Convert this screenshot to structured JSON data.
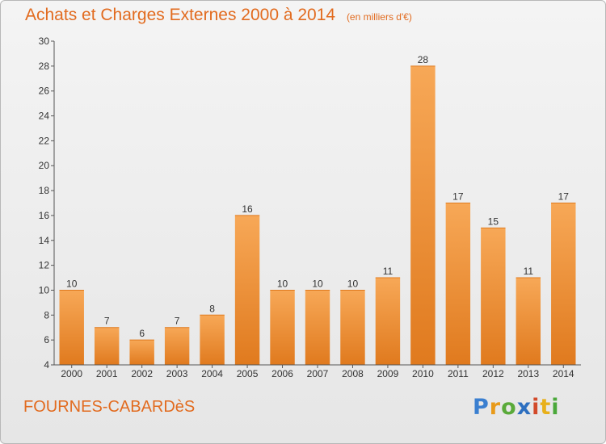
{
  "header": {
    "title": "Achats et Charges Externes 2000 à 2014",
    "unit": "(en milliers d'€)"
  },
  "footer": {
    "commune": "FOURNES-CABARDèS",
    "logo": {
      "letters": [
        "P",
        "r",
        "o",
        "x",
        "i",
        "t",
        "i"
      ],
      "colors": [
        "#3a7fd0",
        "#e89a1a",
        "#5aaa3a",
        "#2d6fc0",
        "#d24a2a",
        "#e8b01a",
        "#4aa83a"
      ]
    }
  },
  "chart_data": {
    "type": "bar",
    "title": "Achats et Charges Externes 2000 à 2014",
    "subtitle": "(en milliers d'€)",
    "xlabel": "",
    "ylabel": "",
    "categories": [
      "2000",
      "2001",
      "2002",
      "2003",
      "2004",
      "2005",
      "2006",
      "2007",
      "2008",
      "2009",
      "2010",
      "2011",
      "2012",
      "2013",
      "2014"
    ],
    "values": [
      10,
      7,
      6,
      7,
      8,
      16,
      10,
      10,
      10,
      11,
      28,
      17,
      15,
      11,
      17
    ],
    "ylim": [
      4,
      30
    ],
    "yticks": [
      4,
      6,
      8,
      10,
      12,
      14,
      16,
      18,
      20,
      22,
      24,
      26,
      28,
      30
    ],
    "grid": false,
    "legend": "none",
    "bar_color": "#f08a30",
    "bar_color_light": "#f7a857",
    "text_color": "#e26b1f"
  }
}
